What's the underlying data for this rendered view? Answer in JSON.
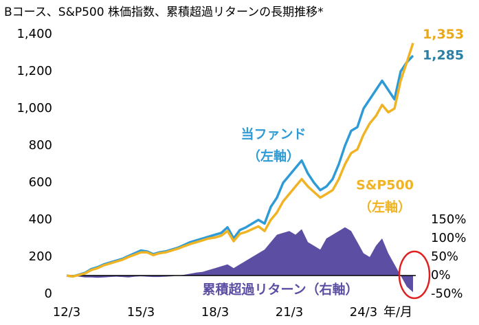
{
  "chart_data": {
    "type": "line",
    "title": "Bコース、S&P500 株価指数、累積超過リターンの長期推移*",
    "xlabel": "年/月",
    "categories": [
      "12/3",
      null,
      null,
      null,
      null,
      null,
      null,
      null,
      null,
      null,
      null,
      null,
      "15/3",
      null,
      null,
      null,
      null,
      null,
      null,
      null,
      null,
      null,
      null,
      null,
      "18/3",
      null,
      null,
      null,
      null,
      null,
      null,
      null,
      null,
      null,
      null,
      null,
      "21/3",
      null,
      null,
      null,
      null,
      null,
      null,
      null,
      null,
      null,
      null,
      null,
      "24/3",
      null,
      null,
      null,
      null,
      null,
      null,
      null,
      null
    ],
    "ylim": [
      0,
      1400
    ],
    "yticks": [
      0,
      {
        "value": 200,
        "label": "200"
      },
      400,
      600,
      800,
      {
        "value": 1000,
        "label": "1,000"
      },
      {
        "value": 1200,
        "label": "1,200"
      },
      {
        "value": 1400,
        "label": "1,400"
      }
    ],
    "y2lim": [
      -50,
      650
    ],
    "y2ticks": [
      {
        "value": -50,
        "label": "-50%"
      },
      {
        "value": 0,
        "label": "0%"
      },
      {
        "value": 50,
        "label": "50%"
      },
      {
        "value": 100,
        "label": "100%"
      },
      {
        "value": 150,
        "label": "150%"
      }
    ],
    "series": [
      {
        "name": "累積超過リターン（右軸）",
        "color": "#5b4ea3",
        "axis": "y2",
        "kind": "area",
        "values": [
          0,
          -2,
          -3,
          -5,
          -5,
          -6,
          -5,
          -4,
          -3,
          -4,
          -5,
          -3,
          -2,
          -3,
          -4,
          -4,
          -3,
          -2,
          0,
          2,
          5,
          8,
          10,
          15,
          20,
          25,
          30,
          20,
          30,
          40,
          50,
          60,
          70,
          90,
          110,
          115,
          120,
          110,
          125,
          90,
          80,
          70,
          100,
          110,
          120,
          130,
          120,
          90,
          60,
          50,
          80,
          100,
          60,
          30,
          0,
          -30,
          -45
        ]
      },
      {
        "name": "当ファンド",
        "name_sub": "（左軸）",
        "color": "#2e9bd6",
        "end_label": "1,285",
        "end_color": "#2a7fa3",
        "values": [
          100,
          95,
          105,
          115,
          135,
          145,
          160,
          170,
          180,
          190,
          205,
          220,
          235,
          230,
          215,
          225,
          230,
          240,
          250,
          265,
          280,
          290,
          300,
          310,
          320,
          330,
          360,
          300,
          345,
          360,
          380,
          400,
          380,
          470,
          520,
          600,
          640,
          680,
          720,
          650,
          600,
          560,
          580,
          620,
          700,
          800,
          880,
          900,
          1000,
          1050,
          1100,
          1150,
          1100,
          1050,
          1200,
          1250,
          1285
        ]
      },
      {
        "name": "S&P500",
        "name_sub": "（左軸）",
        "color": "#f0b323",
        "end_label": "1,353",
        "end_color": "#e8a817",
        "values": [
          100,
          95,
          103,
          112,
          130,
          140,
          155,
          165,
          175,
          185,
          200,
          212,
          225,
          225,
          210,
          220,
          225,
          235,
          245,
          258,
          270,
          280,
          290,
          300,
          305,
          315,
          340,
          285,
          325,
          335,
          350,
          365,
          340,
          400,
          440,
          500,
          540,
          580,
          620,
          580,
          550,
          520,
          540,
          560,
          620,
          700,
          760,
          780,
          860,
          920,
          960,
          1020,
          980,
          1000,
          1150,
          1250,
          1353
        ]
      }
    ]
  }
}
